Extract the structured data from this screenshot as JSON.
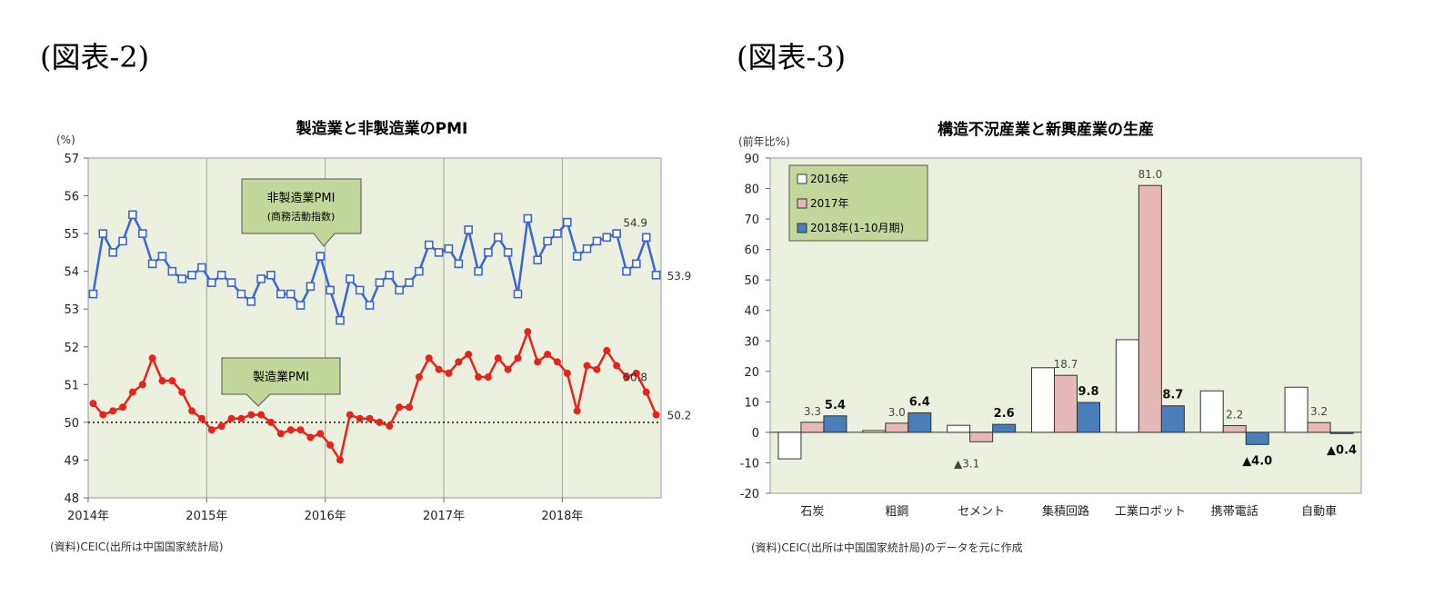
{
  "figures": {
    "fig2_label": "(図表-2)",
    "fig3_label": "(図表-3)"
  },
  "chart_data": [
    {
      "type": "line",
      "title": "製造業と非製造業のPMI",
      "ylabel": "(%)",
      "ylim": [
        48,
        57
      ],
      "yticks": [
        48,
        49,
        50,
        51,
        52,
        53,
        54,
        55,
        56,
        57
      ],
      "xtick_labels": [
        "2014年",
        "2015年",
        "2016年",
        "2017年",
        "2018年"
      ],
      "grid": "vertical year lines",
      "reference_line": 50,
      "source": "(資料)CEIC(出所は中国国家統計局)",
      "callouts": {
        "non_manufacturing": [
          "非製造業PMI",
          "(商務活動指数)"
        ],
        "manufacturing": [
          "製造業PMI"
        ]
      },
      "series": [
        {
          "name": "非製造業PMI",
          "color": "#3a64d8",
          "marker": "square",
          "values": [
            53.4,
            55.0,
            54.5,
            54.8,
            55.5,
            55.0,
            54.2,
            54.4,
            54.0,
            53.8,
            53.9,
            54.1,
            53.7,
            53.9,
            53.7,
            53.4,
            53.2,
            53.8,
            53.9,
            53.4,
            53.4,
            53.1,
            53.6,
            54.4,
            53.5,
            52.7,
            53.8,
            53.5,
            53.1,
            53.7,
            53.9,
            53.5,
            53.7,
            54.0,
            54.7,
            54.5,
            54.6,
            54.2,
            55.1,
            54.0,
            54.5,
            54.9,
            54.5,
            53.4,
            55.4,
            54.3,
            54.8,
            55.0,
            55.3,
            54.4,
            54.6,
            54.8,
            54.9,
            55.0,
            54.0,
            54.2,
            54.9,
            53.9
          ],
          "end_labels": [
            "54.9",
            "53.9"
          ]
        },
        {
          "name": "製造業PMI",
          "color": "#e8231c",
          "marker": "circle",
          "values": [
            50.5,
            50.2,
            50.3,
            50.4,
            50.8,
            51.0,
            51.7,
            51.1,
            51.1,
            50.8,
            50.3,
            50.1,
            49.8,
            49.9,
            50.1,
            50.1,
            50.2,
            50.2,
            50.0,
            49.7,
            49.8,
            49.8,
            49.6,
            49.7,
            49.4,
            49.0,
            50.2,
            50.1,
            50.1,
            50.0,
            49.9,
            50.4,
            50.4,
            51.2,
            51.7,
            51.4,
            51.3,
            51.6,
            51.8,
            51.2,
            51.2,
            51.7,
            51.4,
            51.7,
            52.4,
            51.6,
            51.8,
            51.6,
            51.3,
            50.3,
            51.5,
            51.4,
            51.9,
            51.5,
            51.2,
            51.3,
            50.8,
            50.2
          ],
          "end_labels": [
            "50.8",
            "50.2"
          ]
        }
      ]
    },
    {
      "type": "bar",
      "title": "構造不況産業と新興産業の生産",
      "ylabel": "(前年比%)",
      "ylim": [
        -20,
        90
      ],
      "yticks": [
        -20,
        -10,
        0,
        10,
        20,
        30,
        40,
        50,
        60,
        70,
        80,
        90
      ],
      "categories": [
        "石炭",
        "粗鋼",
        "セメント",
        "集積回路",
        "工業ロボット",
        "携帯電話",
        "自動車"
      ],
      "legend_position": "top-left",
      "source": "(資料)CEIC(出所は中国国家統計局)のデータを元に作成",
      "series": [
        {
          "name": "2016年",
          "color": "#ffffff",
          "values": [
            -8.7,
            0.6,
            2.3,
            21.2,
            30.4,
            13.6,
            14.8
          ]
        },
        {
          "name": "2017年",
          "color": "#e6b8b8",
          "values": [
            3.3,
            3.0,
            -3.1,
            18.7,
            81.0,
            2.2,
            3.2
          ]
        },
        {
          "name": "2018年(1-10月期)",
          "color": "#4a7ebb",
          "values": [
            5.4,
            6.4,
            2.6,
            9.8,
            8.7,
            -4.0,
            -0.4
          ]
        }
      ],
      "data_labels": [
        {
          "category": "石炭",
          "series": "2017年",
          "text": "3.3",
          "bold": false
        },
        {
          "category": "石炭",
          "series": "2018年(1-10月期)",
          "text": "5.4",
          "bold": true
        },
        {
          "category": "粗鋼",
          "series": "2017年",
          "text": "3.0",
          "bold": false
        },
        {
          "category": "粗鋼",
          "series": "2018年(1-10月期)",
          "text": "6.4",
          "bold": true
        },
        {
          "category": "セメント",
          "series": "2017年",
          "text": "▲3.1",
          "bold": false
        },
        {
          "category": "セメント",
          "series": "2018年(1-10月期)",
          "text": "2.6",
          "bold": true
        },
        {
          "category": "集積回路",
          "series": "2017年",
          "text": "18.7",
          "bold": false
        },
        {
          "category": "集積回路",
          "series": "2018年(1-10月期)",
          "text": "9.8",
          "bold": true
        },
        {
          "category": "工業ロボット",
          "series": "2017年",
          "text": "81.0",
          "bold": false
        },
        {
          "category": "工業ロボット",
          "series": "2018年(1-10月期)",
          "text": "8.7",
          "bold": true
        },
        {
          "category": "携帯電話",
          "series": "2017年",
          "text": "2.2",
          "bold": false
        },
        {
          "category": "携帯電話",
          "series": "2018年(1-10月期)",
          "text": "▲4.0",
          "bold": true
        },
        {
          "category": "自動車",
          "series": "2017年",
          "text": "3.2",
          "bold": false
        },
        {
          "category": "自動車",
          "series": "2018年(1-10月期)",
          "text": "▲0.4",
          "bold": true
        }
      ]
    }
  ]
}
